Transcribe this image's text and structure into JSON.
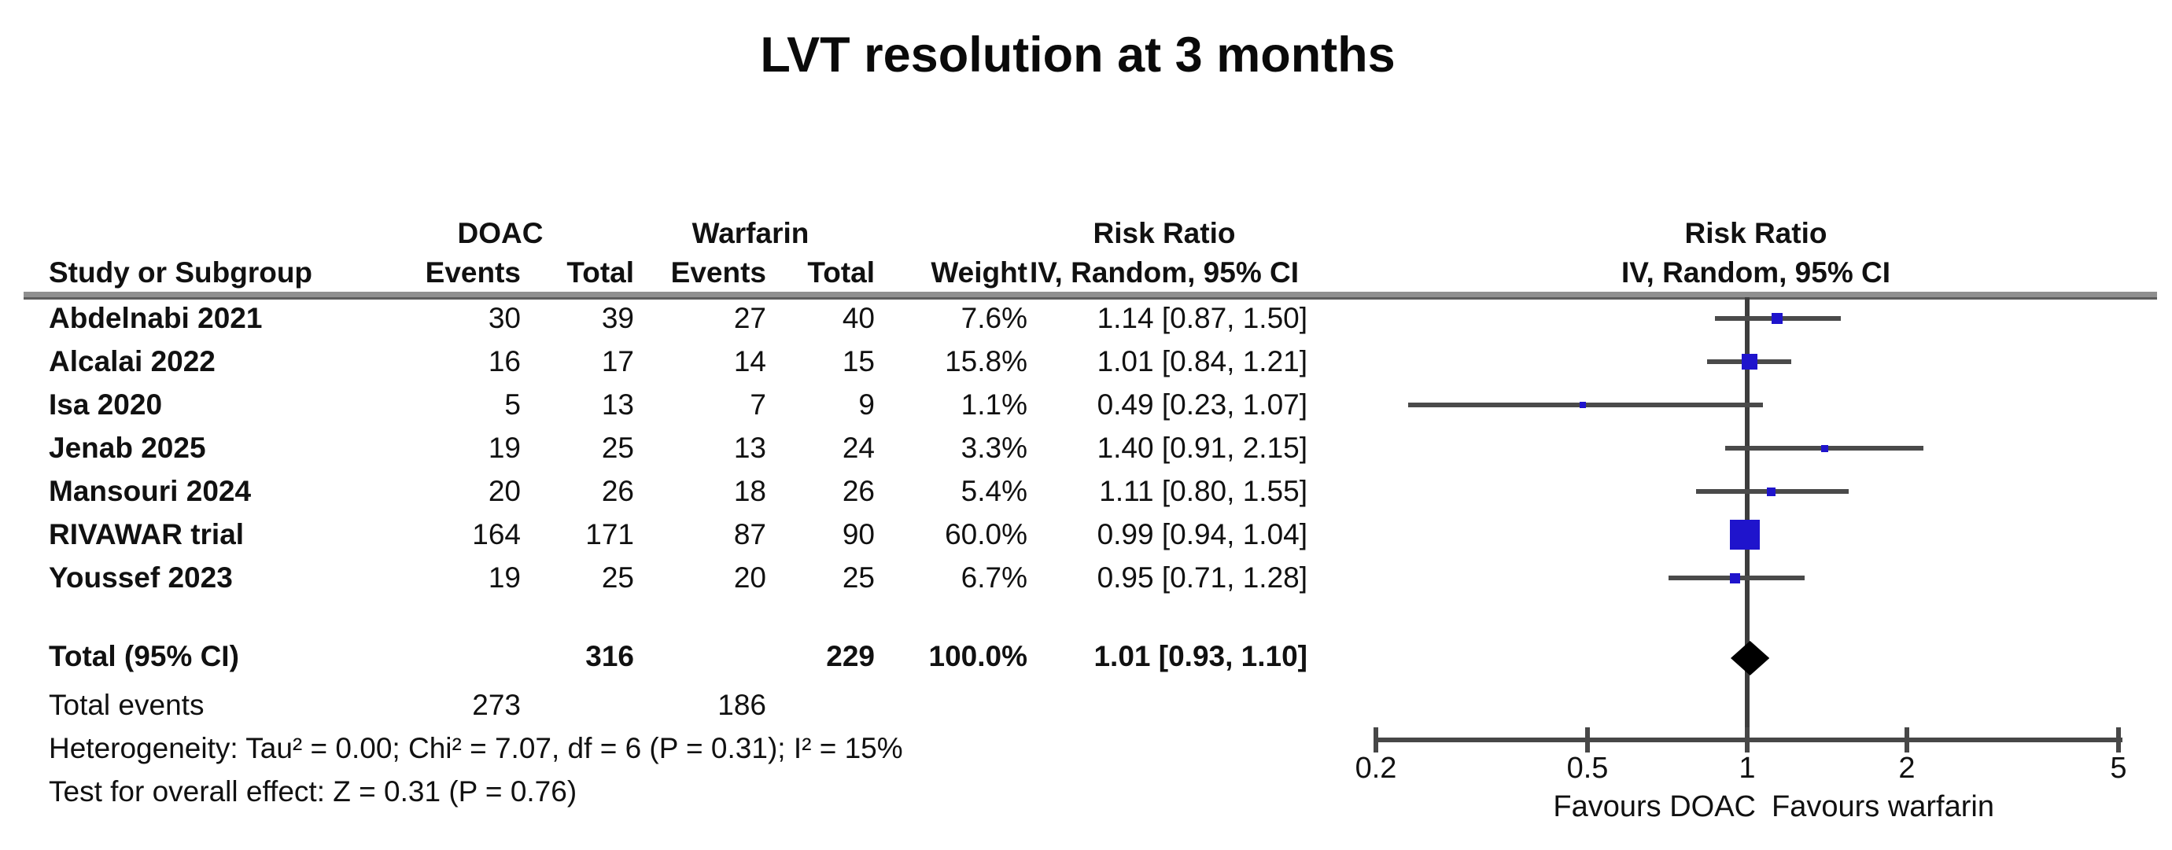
{
  "title": "LVT resolution at 3 months",
  "table": {
    "group1": "DOAC",
    "group2": "Warfarin",
    "col_study": "Study or Subgroup",
    "col_events": "Events",
    "col_total": "Total",
    "col_weight": "Weight",
    "rr_header": "Risk Ratio",
    "rr_subheader": "IV, Random, 95% CI"
  },
  "plot": {
    "rr_header": "Risk Ratio",
    "rr_subheader": "IV, Random, 95% CI",
    "favours_left": "Favours DOAC",
    "favours_right": "Favours warfarin",
    "square_color": "#1f14cc",
    "ci_color": "#4a4a4a",
    "diamond_color": "#000000"
  },
  "chart_data": {
    "type": "forest",
    "x_scale": "log",
    "xlim": [
      0.2,
      5
    ],
    "ticks": [
      {
        "value": 0.2,
        "label": "0.2"
      },
      {
        "value": 0.5,
        "label": "0.5"
      },
      {
        "value": 1,
        "label": "1"
      },
      {
        "value": 2,
        "label": "2"
      },
      {
        "value": 5,
        "label": "5"
      }
    ],
    "studies": [
      {
        "name": "Abdelnabi 2021",
        "doac_events": "30",
        "doac_total": "39",
        "warf_events": "27",
        "warf_total": "40",
        "weight": "7.6%",
        "weight_pct": 7.6,
        "rr": 1.14,
        "ci_low": 0.87,
        "ci_high": 1.5,
        "rr_text": "1.14 [0.87, 1.50]"
      },
      {
        "name": "Alcalai 2022",
        "doac_events": "16",
        "doac_total": "17",
        "warf_events": "14",
        "warf_total": "15",
        "weight": "15.8%",
        "weight_pct": 15.8,
        "rr": 1.01,
        "ci_low": 0.84,
        "ci_high": 1.21,
        "rr_text": "1.01 [0.84, 1.21]"
      },
      {
        "name": "Isa 2020",
        "doac_events": "5",
        "doac_total": "13",
        "warf_events": "7",
        "warf_total": "9",
        "weight": "1.1%",
        "weight_pct": 1.1,
        "rr": 0.49,
        "ci_low": 0.23,
        "ci_high": 1.07,
        "rr_text": "0.49 [0.23, 1.07]"
      },
      {
        "name": "Jenab 2025",
        "doac_events": "19",
        "doac_total": "25",
        "warf_events": "13",
        "warf_total": "24",
        "weight": "3.3%",
        "weight_pct": 3.3,
        "rr": 1.4,
        "ci_low": 0.91,
        "ci_high": 2.15,
        "rr_text": "1.40 [0.91, 2.15]"
      },
      {
        "name": "Mansouri 2024",
        "doac_events": "20",
        "doac_total": "26",
        "warf_events": "18",
        "warf_total": "26",
        "weight": "5.4%",
        "weight_pct": 5.4,
        "rr": 1.11,
        "ci_low": 0.8,
        "ci_high": 1.55,
        "rr_text": "1.11 [0.80, 1.55]"
      },
      {
        "name": "RIVAWAR trial",
        "doac_events": "164",
        "doac_total": "171",
        "warf_events": "87",
        "warf_total": "90",
        "weight": "60.0%",
        "weight_pct": 60.0,
        "rr": 0.99,
        "ci_low": 0.94,
        "ci_high": 1.04,
        "rr_text": "0.99 [0.94, 1.04]"
      },
      {
        "name": "Youssef 2023",
        "doac_events": "19",
        "doac_total": "25",
        "warf_events": "20",
        "warf_total": "25",
        "weight": "6.7%",
        "weight_pct": 6.7,
        "rr": 0.95,
        "ci_low": 0.71,
        "ci_high": 1.28,
        "rr_text": "0.95 [0.71, 1.28]"
      }
    ],
    "total": {
      "label": "Total (95% CI)",
      "doac_total": "316",
      "warf_total": "229",
      "weight": "100.0%",
      "rr": 1.01,
      "ci_low": 0.93,
      "ci_high": 1.1,
      "rr_text": "1.01 [0.93, 1.10]"
    },
    "total_events": {
      "label": "Total events",
      "doac": "273",
      "warf": "186"
    },
    "heterogeneity": "Heterogeneity: Tau² = 0.00; Chi² = 7.07, df = 6 (P = 0.31); I² = 15%",
    "overall_effect": "Test for overall effect: Z = 0.31 (P = 0.76)"
  }
}
